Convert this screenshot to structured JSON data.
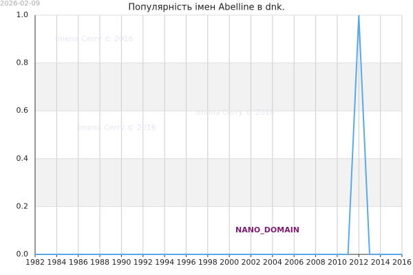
{
  "chart_data": {
    "type": "line",
    "title": "Популярність імен Abelline в dnk.",
    "date_stamp": "2026-02-09",
    "watermarks": [
      "Imena Cerry © 2016",
      "Imena Cerry © 2016",
      "Imena Cerry © 2016"
    ],
    "domain_label": "NANO_DOMAIN",
    "x": [
      1982,
      1983,
      1984,
      1985,
      1986,
      1987,
      1988,
      1989,
      1990,
      1991,
      1992,
      1993,
      1994,
      1995,
      1996,
      1997,
      1998,
      1999,
      2000,
      2001,
      2002,
      2003,
      2004,
      2005,
      2006,
      2007,
      2008,
      2009,
      2010,
      2011,
      2012,
      2013,
      2014,
      2015,
      2016
    ],
    "series": [
      {
        "name": "Abelline",
        "color": "#5aa7e8",
        "values": [
          0,
          0,
          0,
          0,
          0,
          0,
          0,
          0,
          0,
          0,
          0,
          0,
          0,
          0,
          0,
          0,
          0,
          0,
          0,
          0,
          0,
          0,
          0,
          0,
          0,
          0,
          0,
          0,
          0,
          0,
          1,
          0,
          0,
          0,
          0
        ]
      }
    ],
    "xlim": [
      1982,
      2016
    ],
    "xticks": [
      1982,
      1984,
      1986,
      1988,
      1990,
      1992,
      1994,
      1996,
      1998,
      2000,
      2002,
      2004,
      2006,
      2008,
      2010,
      2012,
      2014,
      2016
    ],
    "ylim": [
      0,
      1
    ],
    "yticks": [
      {
        "value": 0,
        "label": "0.0"
      },
      {
        "value": 0.2,
        "label": "0.2"
      },
      {
        "value": 0.4,
        "label": "0.4"
      },
      {
        "value": 0.6,
        "label": "0.6"
      },
      {
        "value": 0.8,
        "label": "0.8"
      },
      {
        "value": 1,
        "label": "1.0"
      }
    ],
    "grid": true
  }
}
